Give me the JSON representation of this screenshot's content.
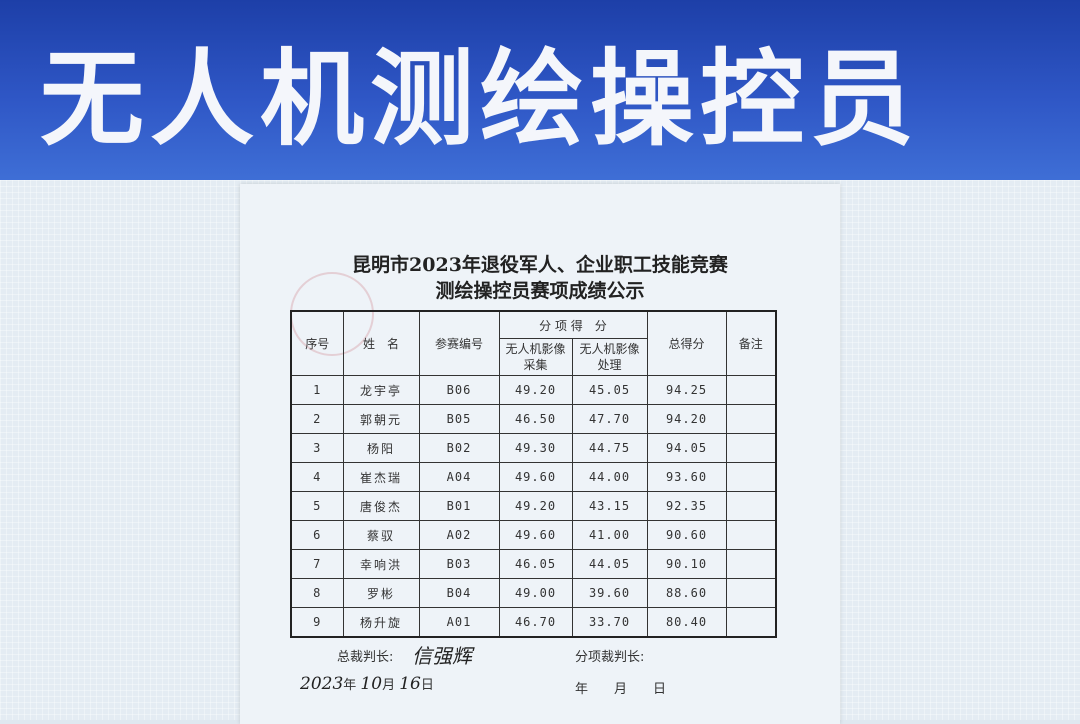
{
  "banner": {
    "title": "无人机测绘操控员"
  },
  "document": {
    "title_line1": "昆明市2023年退役军人、企业职工技能竞赛",
    "title_line2": "测绘操控员赛项成绩公示",
    "headers": {
      "no": "序号",
      "name": "姓　名",
      "id": "参赛编号",
      "sub": "分 项 得　分",
      "sub1": "无人机影像采集",
      "sub2": "无人机影像处理",
      "total": "总得分",
      "remark": "备注"
    },
    "rows": [
      [
        "1",
        "龙宇亭",
        "B06",
        "49.20",
        "45.05",
        "94.25",
        ""
      ],
      [
        "2",
        "郭朝元",
        "B05",
        "46.50",
        "47.70",
        "94.20",
        ""
      ],
      [
        "3",
        "杨阳",
        "B02",
        "49.30",
        "44.75",
        "94.05",
        ""
      ],
      [
        "4",
        "崔杰瑞",
        "A04",
        "49.60",
        "44.00",
        "93.60",
        ""
      ],
      [
        "5",
        "唐俊杰",
        "B01",
        "49.20",
        "43.15",
        "92.35",
        ""
      ],
      [
        "6",
        "蔡驭",
        "A02",
        "49.60",
        "41.00",
        "90.60",
        ""
      ],
      [
        "7",
        "幸响洪",
        "B03",
        "46.05",
        "44.05",
        "90.10",
        ""
      ],
      [
        "8",
        "罗彬",
        "B04",
        "49.00",
        "39.60",
        "88.60",
        ""
      ],
      [
        "9",
        "杨升旋",
        "A01",
        "46.70",
        "33.70",
        "80.40",
        ""
      ]
    ],
    "footer": {
      "chief_judge_label": "总裁判长:",
      "chief_signature": "信强辉",
      "sub_judge_label": "分项裁判长:",
      "date_year": "2023",
      "date_year_unit": "年",
      "date_month": "10",
      "date_month_unit": "月",
      "date_day": "16",
      "date_day_unit": "日",
      "blank_date": "年　　月　　日"
    }
  }
}
